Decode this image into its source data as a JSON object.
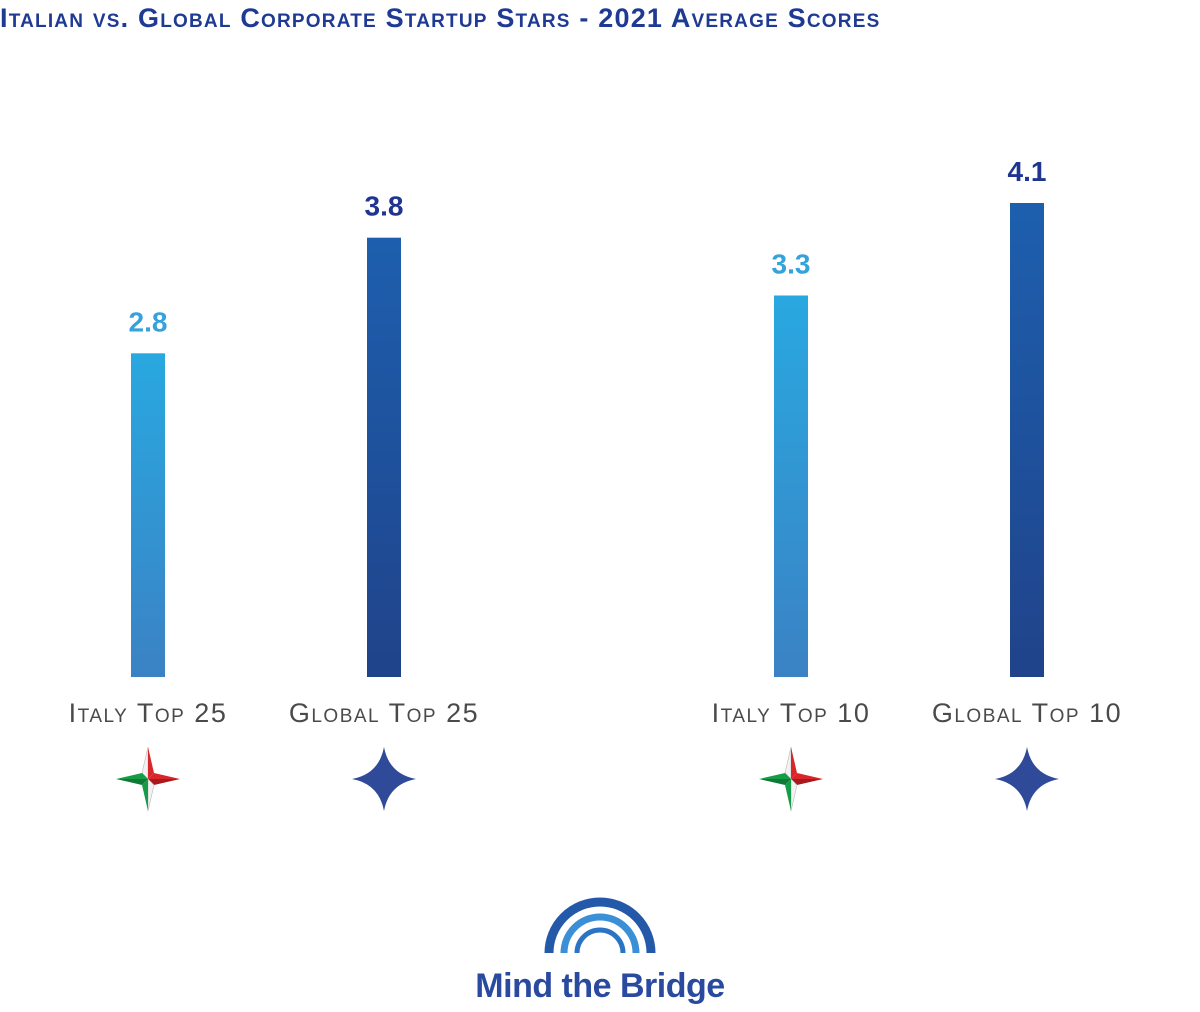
{
  "chart_data": {
    "type": "bar",
    "title": "Italian vs. Global Corporate Startup Stars - 2021 Average Scores",
    "categories": [
      "Italy Top 25",
      "Global Top 25",
      "Italy Top 10",
      "Global Top 10"
    ],
    "values": [
      2.8,
      3.8,
      3.3,
      4.1
    ],
    "value_labels": [
      "2.8",
      "3.8",
      "3.3",
      "4.1"
    ],
    "xlabel": "",
    "ylabel": "",
    "ylim": [
      0,
      5
    ],
    "grid": false,
    "legend": "none",
    "bar_styles": [
      "italy",
      "global",
      "italy",
      "global"
    ],
    "category_icons": [
      "italy-star-icon",
      "global-star-icon",
      "italy-star-icon",
      "global-star-icon"
    ]
  },
  "colors": {
    "title": "#1f3a93",
    "italy_bar_top": "#29a8e0",
    "italy_bar_bottom": "#3b82c4",
    "global_bar_top": "#1d5fae",
    "global_bar_bottom": "#20438a",
    "italy_value": "#35a2dc",
    "global_value": "#1f3590",
    "category_text": "#4a4a4a",
    "flag_green": "#169b47",
    "flag_white": "#f2f2f2",
    "flag_red": "#d8262b",
    "global_star": "#2f4a98",
    "logo_text": "#2a4aa0"
  },
  "logo": {
    "text": "Mind the Bridge",
    "icon": "bridge-arcs-icon"
  }
}
